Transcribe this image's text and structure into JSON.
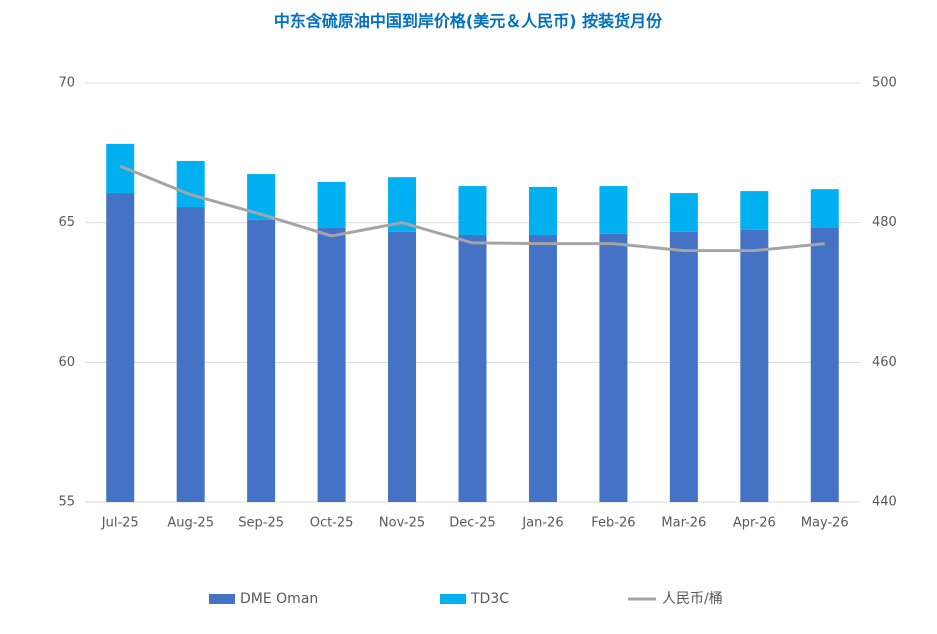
{
  "chart_data": {
    "type": "bar",
    "stacked": true,
    "title": "中东含硫原油中国到岸价格(美元＆人民币) 按装货月份",
    "categories": [
      "Jul-25",
      "Aug-25",
      "Sep-25",
      "Oct-25",
      "Nov-25",
      "Dec-25",
      "Jan-26",
      "Feb-26",
      "Mar-26",
      "Apr-26",
      "May-26"
    ],
    "series": [
      {
        "name": "DME Oman",
        "type": "bar",
        "color": "#4472c4",
        "values": [
          66.06,
          65.56,
          65.1,
          64.81,
          64.67,
          64.56,
          64.56,
          64.6,
          64.67,
          64.74,
          64.81
        ]
      },
      {
        "name": "TD3C",
        "type": "bar",
        "color": "#00b0f0",
        "values": [
          1.76,
          1.65,
          1.64,
          1.65,
          1.96,
          1.75,
          1.72,
          1.71,
          1.39,
          1.39,
          1.39
        ]
      },
      {
        "name": "人民币/桶",
        "type": "line",
        "axis": "y2",
        "color": "#a5a5a5",
        "values": [
          488.1,
          484,
          481.2,
          478.1,
          480,
          477.1,
          477,
          477,
          476,
          476,
          477
        ]
      }
    ],
    "ylim": [
      55,
      70
    ],
    "yticks": [
      55,
      60,
      65,
      70
    ],
    "y2lim": [
      440,
      500
    ],
    "y2ticks": [
      440,
      460,
      480,
      500
    ],
    "grid": true,
    "legend": "bottom"
  }
}
